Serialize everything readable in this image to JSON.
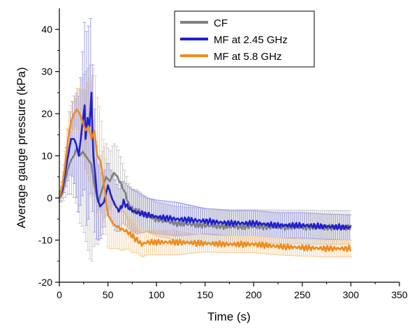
{
  "chart_data": {
    "type": "line",
    "title": "",
    "xlabel": "Time (s)",
    "ylabel": "Average gauge pressure (kPa)",
    "xlim": [
      0,
      350
    ],
    "ylim": [
      -20,
      45
    ],
    "xticks": [
      0,
      50,
      100,
      150,
      200,
      250,
      300,
      350
    ],
    "yticks": [
      -20,
      -10,
      0,
      10,
      20,
      30,
      40
    ],
    "grid": false,
    "legend_position": "top-right",
    "series": [
      {
        "name": "CF",
        "color": "#7f7f7f",
        "error_color": "#c8c8c8",
        "x": [
          0,
          3,
          6,
          9,
          12,
          15,
          18,
          21,
          24,
          27,
          30,
          33,
          36,
          40,
          44,
          48,
          52,
          56,
          60,
          64,
          68,
          72,
          76,
          80,
          90,
          100,
          120,
          150,
          175,
          200,
          225,
          250,
          275,
          300
        ],
        "y": [
          0,
          1,
          4,
          7,
          9,
          10,
          12,
          10,
          11,
          10,
          9,
          8,
          3,
          -1,
          2,
          5,
          4,
          6,
          5,
          3,
          1,
          -2,
          -3,
          -3,
          -4,
          -5,
          -6,
          -6.5,
          -6.8,
          -6.8,
          -6.9,
          -6.9,
          -7,
          -7
        ],
        "err": [
          1,
          2,
          4,
          6,
          8,
          10,
          14,
          16,
          18,
          20,
          22,
          24,
          14,
          10,
          9,
          8,
          7,
          7,
          7,
          6,
          5,
          5,
          5,
          5,
          4,
          4,
          4,
          4,
          4,
          4,
          4,
          4,
          4,
          4
        ]
      },
      {
        "name": "MF at 2.45 GHz",
        "color": "#1f1fd0",
        "error_color": "#a3a3e8",
        "x": [
          0,
          3,
          6,
          9,
          12,
          15,
          17,
          20,
          23,
          26,
          27,
          29,
          31,
          33,
          34,
          35,
          37,
          39,
          42,
          46,
          50,
          54,
          58,
          62,
          66,
          70,
          75,
          80,
          90,
          100,
          120,
          150,
          175,
          200,
          225,
          250,
          275,
          300
        ],
        "y": [
          0,
          2,
          6,
          10,
          14,
          14,
          13,
          10,
          16,
          22,
          14,
          19,
          17,
          25,
          16,
          10,
          5,
          0,
          -2,
          -1,
          3,
          0,
          -2,
          -3,
          -1,
          -2,
          -3,
          -3.5,
          -4,
          -4.5,
          -5,
          -5.5,
          -6,
          -6,
          -6.5,
          -6.5,
          -6.8,
          -7
        ],
        "err": [
          1,
          2,
          4,
          6,
          8,
          10,
          12,
          14,
          16,
          20,
          22,
          24,
          22,
          20,
          18,
          16,
          14,
          10,
          8,
          7,
          6,
          6,
          6,
          5,
          5,
          5,
          5,
          5,
          4,
          4,
          4,
          3,
          3,
          3,
          3,
          3,
          3,
          3
        ]
      },
      {
        "name": "MF at 5.8 GHz",
        "color": "#f18a1c",
        "error_color": "#f4cf9e",
        "x": [
          0,
          3,
          6,
          9,
          12,
          15,
          18,
          21,
          24,
          27,
          30,
          33,
          36,
          39,
          42,
          45,
          50,
          55,
          60,
          65,
          70,
          75,
          80,
          85,
          90,
          100,
          120,
          150,
          175,
          200,
          225,
          250,
          275,
          300
        ],
        "y": [
          0,
          3,
          8,
          14,
          18,
          20,
          21,
          20,
          18,
          16,
          17,
          14,
          16,
          10,
          9,
          5,
          -4,
          -6,
          -7,
          -7.5,
          -8,
          -9,
          -10,
          -11,
          -10.5,
          -10.5,
          -10.5,
          -10.8,
          -11,
          -11,
          -11.5,
          -11.8,
          -12,
          -12
        ],
        "err": [
          1,
          2,
          4,
          6,
          4,
          3,
          5,
          6,
          8,
          10,
          12,
          14,
          16,
          14,
          12,
          10,
          8,
          6,
          5,
          5,
          4,
          4,
          3,
          3,
          3,
          3,
          3,
          2,
          2,
          2,
          2,
          2,
          2,
          2
        ]
      }
    ]
  }
}
